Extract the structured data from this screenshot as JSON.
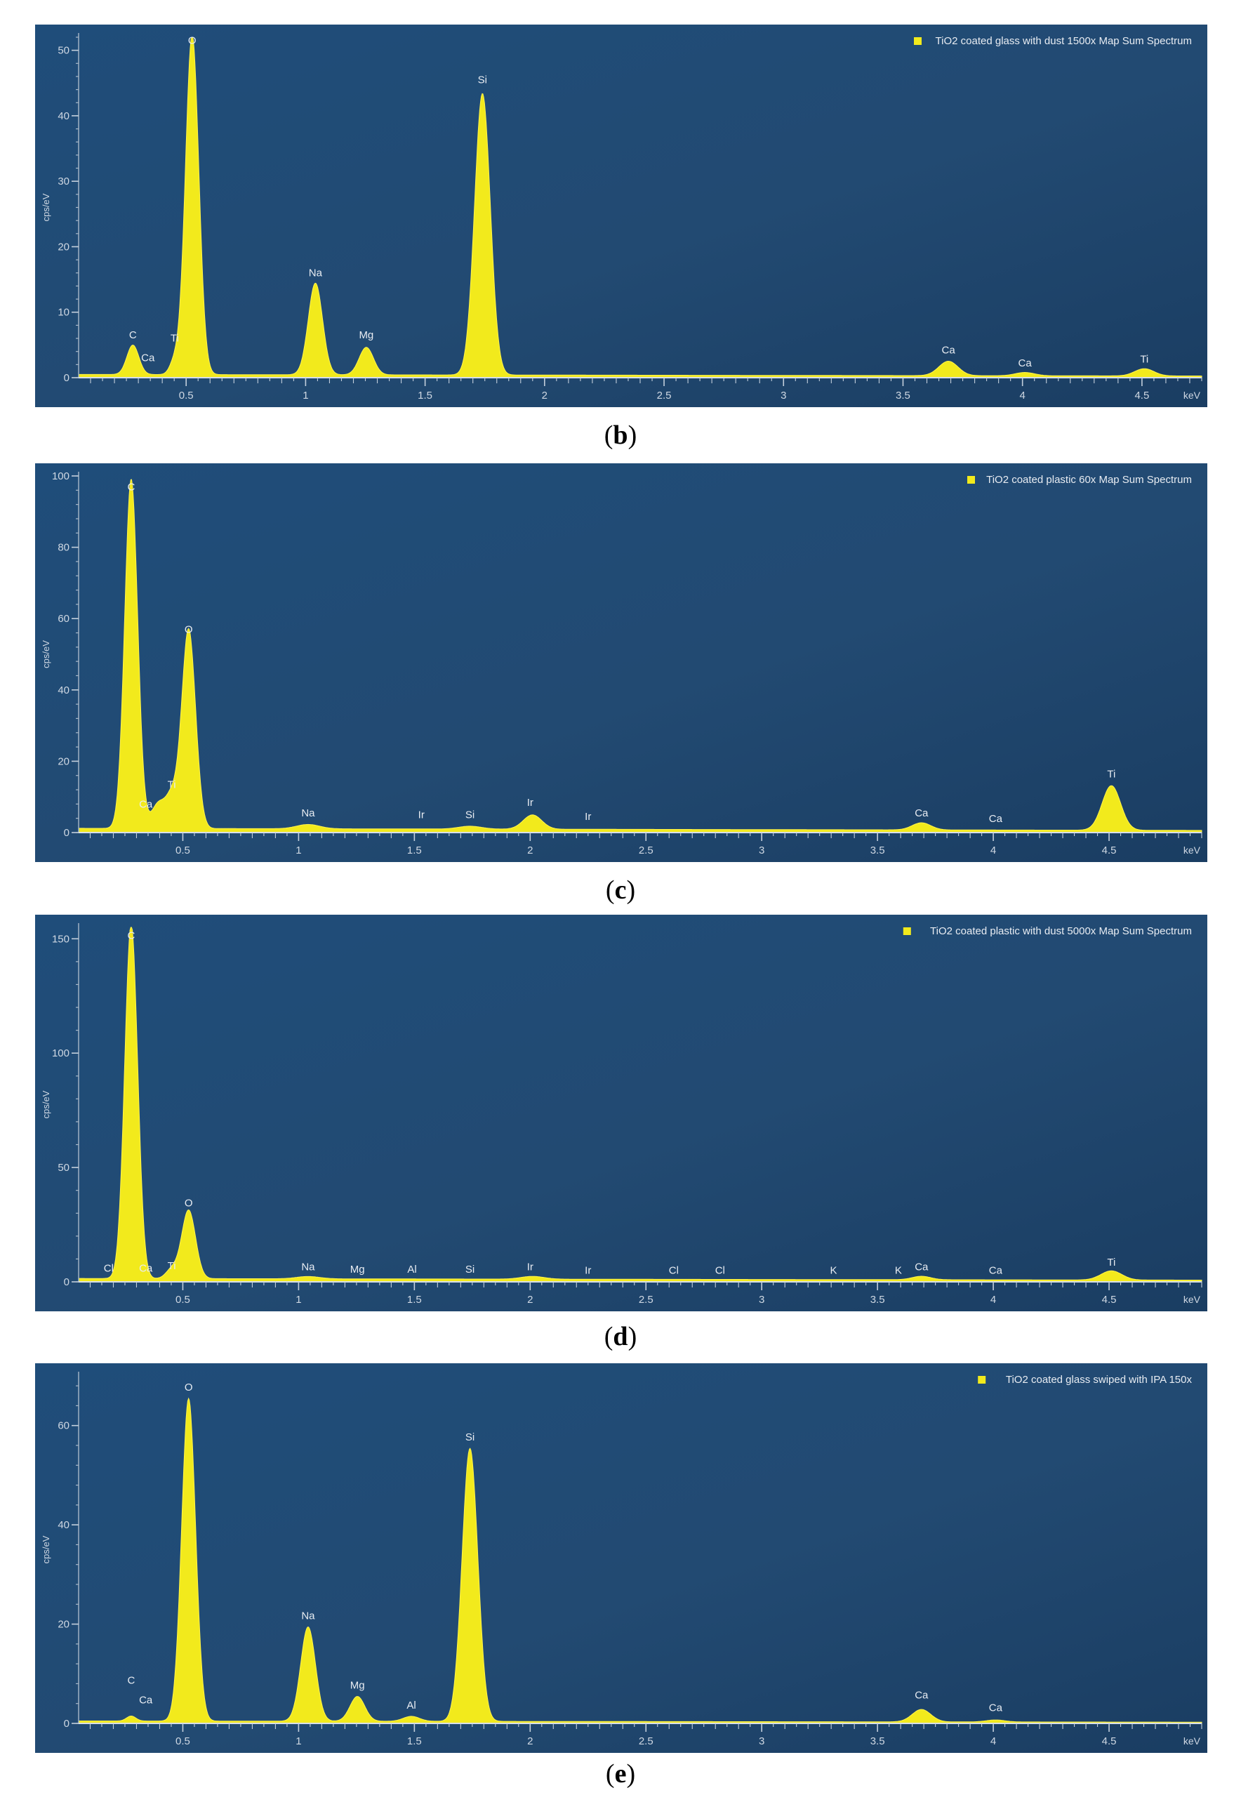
{
  "chart_data": [
    {
      "type": "area",
      "panel": "b",
      "caption_label": "b",
      "legend": "TiO2 coated glass with dust 1500x Map Sum Spectrum",
      "ylabel": "cps/eV",
      "xunit": "keV",
      "xlim": [
        0.05,
        4.75
      ],
      "ylim": [
        0,
        52
      ],
      "yticks": [
        0,
        10,
        20,
        30,
        40,
        50
      ],
      "xticks": [
        0.5,
        1,
        1.5,
        2,
        2.5,
        3,
        3.5,
        4,
        4.5
      ],
      "xtick_labels": [
        "0.5",
        "1",
        "1.5",
        "2",
        "2.5",
        "3",
        "3.5",
        "4",
        "4.5"
      ],
      "baseline": 0.5,
      "peaks": [
        {
          "x": 0.277,
          "height": 4.5,
          "width": 0.025
        },
        {
          "x": 0.452,
          "height": 2.0,
          "width": 0.02
        },
        {
          "x": 0.525,
          "height": 52.0,
          "width": 0.028
        },
        {
          "x": 1.041,
          "height": 14.0,
          "width": 0.03
        },
        {
          "x": 1.254,
          "height": 4.2,
          "width": 0.03
        },
        {
          "x": 1.74,
          "height": 43.0,
          "width": 0.033
        },
        {
          "x": 3.69,
          "height": 2.2,
          "width": 0.04
        },
        {
          "x": 4.01,
          "height": 0.5,
          "width": 0.04
        },
        {
          "x": 4.51,
          "height": 1.1,
          "width": 0.04
        }
      ],
      "labels": [
        {
          "text": "C",
          "x": 0.277,
          "y": 6.0
        },
        {
          "text": "Ca",
          "x": 0.34,
          "y": 2.5
        },
        {
          "text": "Ti",
          "x": 0.452,
          "y": 5.5
        },
        {
          "text": "O",
          "x": 0.525,
          "y": 51.0
        },
        {
          "text": "Na",
          "x": 1.041,
          "y": 15.5
        },
        {
          "text": "Mg",
          "x": 1.254,
          "y": 6.0
        },
        {
          "text": "Si",
          "x": 1.74,
          "y": 45.0
        },
        {
          "text": "Ca",
          "x": 3.69,
          "y": 3.7
        },
        {
          "text": "Ca",
          "x": 4.01,
          "y": 1.7
        },
        {
          "text": "Ti",
          "x": 4.51,
          "y": 2.3
        }
      ]
    },
    {
      "type": "area",
      "panel": "c",
      "caption_label": "c",
      "legend": "TiO2 coated plastic 60x Map Sum Spectrum",
      "ylabel": "cps/eV",
      "xunit": "keV",
      "xlim": [
        0.05,
        4.9
      ],
      "ylim": [
        0,
        100
      ],
      "yticks": [
        0,
        20,
        40,
        60,
        80,
        100
      ],
      "xticks": [
        0.5,
        1,
        1.5,
        2,
        2.5,
        3,
        3.5,
        4,
        4.5
      ],
      "xtick_labels": [
        "0.5",
        "1",
        "1.5",
        "2",
        "2.5",
        "3",
        "3.5",
        "4",
        "4.5"
      ],
      "baseline": 1.2,
      "peaks": [
        {
          "x": 0.277,
          "height": 98.0,
          "width": 0.028
        },
        {
          "x": 0.395,
          "height": 7.0,
          "width": 0.03
        },
        {
          "x": 0.452,
          "height": 8.0,
          "width": 0.025
        },
        {
          "x": 0.525,
          "height": 56.0,
          "width": 0.03
        },
        {
          "x": 1.041,
          "height": 1.2,
          "width": 0.05
        },
        {
          "x": 1.74,
          "height": 0.8,
          "width": 0.05
        },
        {
          "x": 2.01,
          "height": 4.0,
          "width": 0.04
        },
        {
          "x": 3.69,
          "height": 2.0,
          "width": 0.04
        },
        {
          "x": 4.51,
          "height": 12.5,
          "width": 0.04
        }
      ],
      "labels": [
        {
          "text": "C",
          "x": 0.277,
          "y": 96.0
        },
        {
          "text": "Ca",
          "x": 0.34,
          "y": 7.0
        },
        {
          "text": "Ti",
          "x": 0.452,
          "y": 12.5
        },
        {
          "text": "O",
          "x": 0.525,
          "y": 56.0
        },
        {
          "text": "Na",
          "x": 1.041,
          "y": 4.5
        },
        {
          "text": "Ir",
          "x": 1.53,
          "y": 4.0
        },
        {
          "text": "Si",
          "x": 1.74,
          "y": 4.0
        },
        {
          "text": "Ir",
          "x": 2.0,
          "y": 7.5
        },
        {
          "text": "Ir",
          "x": 2.25,
          "y": 3.5
        },
        {
          "text": "Ca",
          "x": 3.69,
          "y": 4.5
        },
        {
          "text": "Ca",
          "x": 4.01,
          "y": 3.0
        },
        {
          "text": "Ti",
          "x": 4.51,
          "y": 15.5
        }
      ]
    },
    {
      "type": "area",
      "panel": "d",
      "caption_label": "d",
      "legend": "TiO2 coated plastic with dust 5000x Map Sum Spectrum",
      "ylabel": "cps/eV",
      "xunit": "keV",
      "xlim": [
        0.05,
        4.9
      ],
      "ylim": [
        0,
        155
      ],
      "yticks": [
        0,
        50,
        100,
        150
      ],
      "xticks": [
        0.5,
        1,
        1.5,
        2,
        2.5,
        3,
        3.5,
        4,
        4.5
      ],
      "xtick_labels": [
        "0.5",
        "1",
        "1.5",
        "2",
        "2.5",
        "3",
        "3.5",
        "4",
        "4.5"
      ],
      "baseline": 1.5,
      "peaks": [
        {
          "x": 0.277,
          "height": 155.0,
          "width": 0.028
        },
        {
          "x": 0.452,
          "height": 4.0,
          "width": 0.025
        },
        {
          "x": 0.525,
          "height": 30.0,
          "width": 0.03
        },
        {
          "x": 1.041,
          "height": 1.0,
          "width": 0.05
        },
        {
          "x": 2.01,
          "height": 1.2,
          "width": 0.05
        },
        {
          "x": 3.69,
          "height": 1.5,
          "width": 0.04
        },
        {
          "x": 4.51,
          "height": 4.0,
          "width": 0.045
        }
      ],
      "labels": [
        {
          "text": "C",
          "x": 0.277,
          "y": 150.0
        },
        {
          "text": "Cl",
          "x": 0.18,
          "y": 4.5
        },
        {
          "text": "Ca",
          "x": 0.34,
          "y": 4.5
        },
        {
          "text": "Ti",
          "x": 0.452,
          "y": 5.5
        },
        {
          "text": "O",
          "x": 0.525,
          "y": 33.0
        },
        {
          "text": "Na",
          "x": 1.041,
          "y": 5.0
        },
        {
          "text": "Mg",
          "x": 1.254,
          "y": 4.0
        },
        {
          "text": "Al",
          "x": 1.49,
          "y": 4.0
        },
        {
          "text": "Si",
          "x": 1.74,
          "y": 4.0
        },
        {
          "text": "Ir",
          "x": 2.0,
          "y": 5.0
        },
        {
          "text": "Ir",
          "x": 2.25,
          "y": 3.5
        },
        {
          "text": "Cl",
          "x": 2.62,
          "y": 3.5
        },
        {
          "text": "Cl",
          "x": 2.82,
          "y": 3.5
        },
        {
          "text": "K",
          "x": 3.31,
          "y": 3.5
        },
        {
          "text": "K",
          "x": 3.59,
          "y": 3.5
        },
        {
          "text": "Ca",
          "x": 3.69,
          "y": 5.0
        },
        {
          "text": "Ca",
          "x": 4.01,
          "y": 3.5
        },
        {
          "text": "Ti",
          "x": 4.51,
          "y": 7.0
        }
      ]
    },
    {
      "type": "area",
      "panel": "e",
      "caption_label": "e",
      "legend": "TiO2 coated glass swiped with IPA 150x",
      "ylabel": "cps/eV",
      "xunit": "keV",
      "xlim": [
        0.05,
        4.9
      ],
      "ylim": [
        0,
        70
      ],
      "yticks": [
        0,
        20,
        40,
        60
      ],
      "xticks": [
        0.5,
        1,
        1.5,
        2,
        2.5,
        3,
        3.5,
        4,
        4.5
      ],
      "xtick_labels": [
        "0.5",
        "1",
        "1.5",
        "2",
        "2.5",
        "3",
        "3.5",
        "4",
        "4.5"
      ],
      "baseline": 0.5,
      "peaks": [
        {
          "x": 0.277,
          "height": 1.0,
          "width": 0.02
        },
        {
          "x": 0.525,
          "height": 65.0,
          "width": 0.03
        },
        {
          "x": 1.041,
          "height": 19.0,
          "width": 0.032
        },
        {
          "x": 1.254,
          "height": 5.0,
          "width": 0.032
        },
        {
          "x": 1.487,
          "height": 1.0,
          "width": 0.035
        },
        {
          "x": 1.74,
          "height": 55.0,
          "width": 0.034
        },
        {
          "x": 3.69,
          "height": 2.5,
          "width": 0.04
        },
        {
          "x": 4.01,
          "height": 0.4,
          "width": 0.04
        }
      ],
      "labels": [
        {
          "text": "C",
          "x": 0.277,
          "y": 8.0
        },
        {
          "text": "Ca",
          "x": 0.34,
          "y": 4.0
        },
        {
          "text": "O",
          "x": 0.525,
          "y": 67.0
        },
        {
          "text": "Na",
          "x": 1.041,
          "y": 21.0
        },
        {
          "text": "Mg",
          "x": 1.254,
          "y": 7.0
        },
        {
          "text": "Al",
          "x": 1.487,
          "y": 3.0
        },
        {
          "text": "Si",
          "x": 1.74,
          "y": 57.0
        },
        {
          "text": "Ca",
          "x": 3.69,
          "y": 5.0
        },
        {
          "text": "Ca",
          "x": 4.01,
          "y": 2.5
        }
      ]
    }
  ]
}
